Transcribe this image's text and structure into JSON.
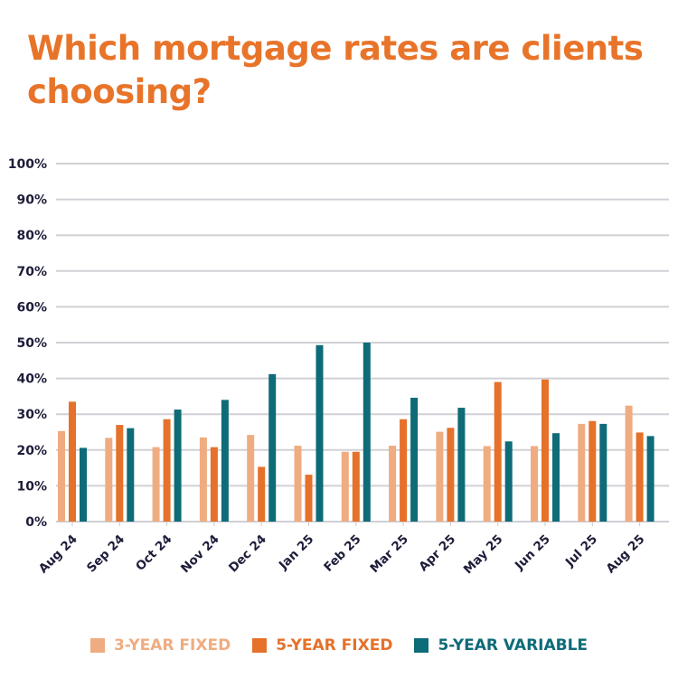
{
  "chart_data": {
    "type": "bar",
    "title": "Which mortgage rates are clients choosing?",
    "categories": [
      "Aug 24",
      "Sep 24",
      "Oct 24",
      "Nov 24",
      "Dec 24",
      "Jan 25",
      "Feb 25",
      "Mar 25",
      "Apr 25",
      "May 25",
      "Jun 25",
      "Jul 25",
      "Aug 25"
    ],
    "series": [
      {
        "name": "3-YEAR FIXED",
        "color": "#EFAC80",
        "values": [
          25.3,
          23.4,
          20.8,
          23.5,
          24.2,
          21.2,
          19.5,
          21.2,
          25.1,
          21.1,
          21.1,
          27.3,
          32.4
        ]
      },
      {
        "name": "5-YEAR FIXED",
        "color": "#E5712A",
        "values": [
          33.5,
          27.0,
          28.6,
          20.8,
          15.3,
          13.1,
          19.5,
          28.6,
          26.2,
          39.0,
          39.7,
          28.1,
          24.9
        ]
      },
      {
        "name": "5-YEAR VARIABLE",
        "color": "#0E6B78",
        "values": [
          20.6,
          26.1,
          31.3,
          34.0,
          41.2,
          49.3,
          50.0,
          34.6,
          31.8,
          22.4,
          24.7,
          27.3,
          23.9
        ]
      }
    ],
    "yticks": [
      "0%",
      "10%",
      "20%",
      "30%",
      "40%",
      "50%",
      "60%",
      "70%",
      "80%",
      "90%",
      "100%"
    ],
    "ylim": [
      0,
      100
    ],
    "grid": true,
    "legend_position": "bottom",
    "xlabel": "",
    "ylabel": ""
  }
}
